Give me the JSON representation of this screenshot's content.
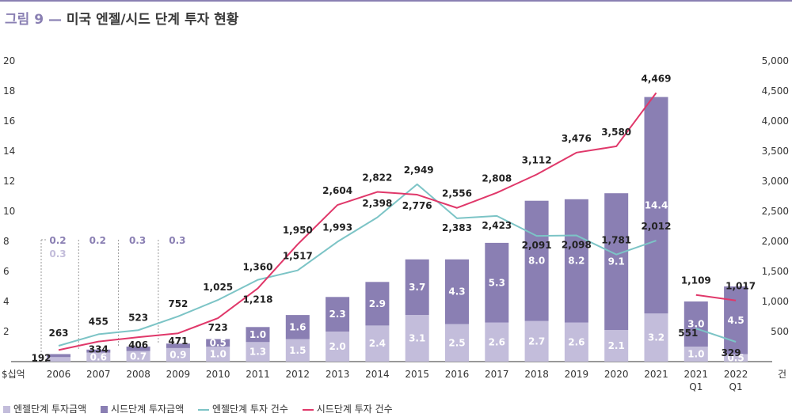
{
  "header": {
    "figure_label": "그림 9",
    "dash": "—",
    "title": "미국 엔젤/시드 단계 투자 현황"
  },
  "chart_data": {
    "type": "bar",
    "title": "미국 엔젤/시드 단계 투자 현황",
    "categories": [
      "2006",
      "2007",
      "2008",
      "2009",
      "2010",
      "2011",
      "2012",
      "2013",
      "2014",
      "2015",
      "2016",
      "2017",
      "2018",
      "2019",
      "2020",
      "2021",
      "2021 Q1",
      "2022 Q1"
    ],
    "y_left_label": "$십억",
    "y_right_label": "건",
    "y_left_ticks": [
      "2",
      "4",
      "6",
      "8",
      "10",
      "12",
      "14",
      "16",
      "18",
      "20"
    ],
    "y_right_ticks": [
      "500",
      "1,000",
      "1,500",
      "2,000",
      "2,500",
      "3,000",
      "3,500",
      "4,000",
      "4,500",
      "5,000"
    ],
    "ylim_left": [
      0,
      20
    ],
    "ylim_right": [
      0,
      5000
    ],
    "grid": false,
    "legend_position": "bottom-left",
    "colors": {
      "angel_bar": "#c3bddb",
      "seed_bar": "#8a7fb3",
      "angel_line": "#7cc4c6",
      "seed_line": "#e0386a"
    },
    "series": [
      {
        "name": "엔젤단계 투자금액",
        "kind": "bar",
        "axis": "left",
        "values": [
          0.3,
          0.6,
          0.7,
          0.9,
          1.0,
          1.3,
          1.5,
          2.0,
          2.4,
          3.1,
          2.5,
          2.6,
          2.7,
          2.6,
          2.1,
          3.2,
          1.0,
          0.5
        ],
        "labels": [
          "0.3",
          "0.6",
          "0.7",
          "0.9",
          "1.0",
          "1.3",
          "1.5",
          "2.0",
          "2.4",
          "3.1",
          "2.5",
          "2.6",
          "2.7",
          "2.6",
          "2.1",
          "3.2",
          "1.0",
          "0.5"
        ]
      },
      {
        "name": "시드단계 투자금액",
        "kind": "bar",
        "axis": "left",
        "values": [
          0.2,
          0.2,
          0.3,
          0.3,
          0.5,
          1.0,
          1.6,
          2.3,
          2.9,
          3.7,
          4.3,
          5.3,
          8.0,
          8.2,
          9.1,
          14.4,
          3.0,
          4.5
        ],
        "labels": [
          "0.2",
          "0.2",
          "0.3",
          "0.3",
          "0.5",
          "1.0",
          "1.6",
          "2.3",
          "2.9",
          "3.7",
          "4.3",
          "5.3",
          "8.0",
          "8.2",
          "9.1",
          "14.4",
          "3.0",
          "4.5"
        ]
      },
      {
        "name": "엔젤단계 투자 건수",
        "kind": "line",
        "axis": "right",
        "values": [
          263,
          455,
          523,
          752,
          1025,
          1360,
          1517,
          1993,
          2398,
          2949,
          2383,
          2423,
          2091,
          2098,
          1781,
          2012,
          551,
          329
        ],
        "labels": [
          "263",
          "455",
          "523",
          "752",
          "1,025",
          "1,360",
          "1,517",
          "1,993",
          "2,398",
          "2,949",
          "2,383",
          "2,423",
          "2,091",
          "2,098",
          "1,781",
          "2,012",
          "551",
          "329"
        ]
      },
      {
        "name": "시드단계 투자 건수",
        "kind": "line",
        "axis": "right",
        "values": [
          192,
          334,
          406,
          471,
          723,
          1218,
          1950,
          2604,
          2822,
          2776,
          2556,
          2808,
          3112,
          3476,
          3580,
          4469,
          1109,
          1017
        ],
        "labels": [
          "192",
          "334",
          "406",
          "471",
          "723",
          "1,218",
          "1,950",
          "2,604",
          "2,822",
          "2,776",
          "2,556",
          "2,808",
          "3,112",
          "3,476",
          "3,580",
          "4,469",
          "1,109",
          "1,017"
        ]
      }
    ]
  }
}
